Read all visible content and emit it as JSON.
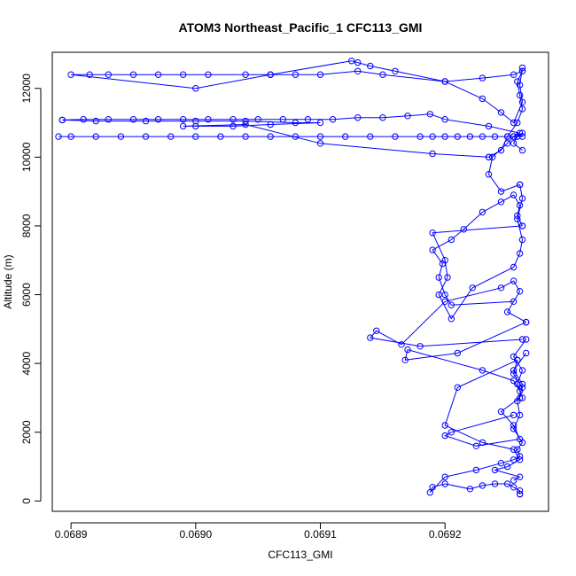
{
  "chart_data": {
    "type": "line",
    "title": "ATOM3 Northeast_Pacific_1 CFC113_GMI",
    "xlabel": "CFC113_GMI",
    "ylabel": "Altitude (m)",
    "xlim": [
      0.068885,
      0.069283
    ],
    "ylim": [
      -300,
      13050
    ],
    "xticks": [
      0.0689,
      0.069,
      0.0691,
      0.0692
    ],
    "xtick_labels": [
      "0.0689",
      "0.0690",
      "0.0691",
      "0.0692"
    ],
    "yticks": [
      0,
      2000,
      4000,
      6000,
      8000,
      10000,
      12000
    ],
    "ytick_labels": [
      "0",
      "2000",
      "4000",
      "6000",
      "8000",
      "10000",
      "12000"
    ],
    "markers": "open-circle",
    "grid": false,
    "legend": "none",
    "color": "#0000ff",
    "series": [
      {
        "x": [
          0.06926,
          0.06926,
          0.06926,
          0.069255,
          0.06925,
          0.06924,
          0.06923,
          0.06922,
          0.0692,
          0.06919,
          0.069188,
          0.0692,
          0.069225,
          0.069245,
          0.069255,
          0.06926,
          0.069258,
          0.069262,
          0.069255,
          0.06926,
          0.069258,
          0.069262,
          0.069255,
          0.069258
        ],
        "y": [
          200,
          200,
          300,
          400,
          500,
          500,
          450,
          350,
          500,
          400,
          250,
          700,
          900,
          1100,
          1200,
          1300,
          1500,
          1700,
          2100,
          2500,
          2900,
          3300,
          3700,
          4100
        ]
      },
      {
        "x": [
          0.069258,
          0.06921,
          0.0692,
          0.06923,
          0.069255,
          0.06926,
          0.06925,
          0.06924,
          0.06926,
          0.069255
        ],
        "y": [
          4100,
          3300,
          2200,
          1700,
          1500,
          1200,
          1000,
          900,
          700,
          600
        ]
      },
      {
        "x": [
          0.069255,
          0.069205,
          0.0692,
          0.069225,
          0.06926,
          0.069255,
          0.069245,
          0.06926,
          0.069262,
          0.069255,
          0.069265
        ],
        "y": [
          2500,
          2000,
          1900,
          1600,
          1800,
          2200,
          2600,
          3000,
          3400,
          3800,
          4300
        ]
      },
      {
        "x": [
          0.069262,
          0.06918,
          0.06914,
          0.069145,
          0.069165,
          0.0692,
          0.069245,
          0.069255,
          0.06926,
          0.06925,
          0.069265
        ],
        "y": [
          4700,
          4500,
          4750,
          4950,
          4550,
          5800,
          6200,
          6400,
          6100,
          5500,
          5200
        ]
      },
      {
        "x": [
          0.069265,
          0.06921,
          0.069168,
          0.06917,
          0.06923,
          0.069255,
          0.06926,
          0.069262,
          0.069258,
          0.069262,
          0.069255,
          0.069265
        ],
        "y": [
          5200,
          4300,
          4100,
          4400,
          3800,
          3500,
          3200,
          3000,
          3400,
          3800,
          4200,
          4700
        ]
      },
      {
        "x": [
          0.069255,
          0.069205,
          0.0692,
          0.069195,
          0.069198,
          0.06919,
          0.069205,
          0.069215,
          0.06923,
          0.069245,
          0.069255,
          0.06926,
          0.069258,
          0.069262
        ],
        "y": [
          5800,
          5700,
          6000,
          6500,
          6900,
          7300,
          7600,
          7900,
          8400,
          8700,
          8900,
          8600,
          8300,
          8000
        ]
      },
      {
        "x": [
          0.069262,
          0.06919,
          0.0692,
          0.069202,
          0.069195,
          0.069205,
          0.069222,
          0.069255,
          0.06926,
          0.069262,
          0.069258,
          0.069262,
          0.06926
        ],
        "y": [
          8000,
          7800,
          7000,
          6500,
          6000,
          5300,
          6200,
          6800,
          7200,
          7600,
          8200,
          8800,
          9200
        ]
      },
      {
        "x": [
          0.06926,
          0.069245,
          0.069235,
          0.069238,
          0.06925,
          0.069255,
          0.069262,
          0.069258,
          0.069255,
          0.069262
        ],
        "y": [
          9200,
          9000,
          9500,
          10000,
          10400,
          10600,
          10700,
          10600,
          10400,
          10200
        ]
      },
      {
        "x": [
          0.069262,
          0.069255,
          0.06925,
          0.06924,
          0.06923,
          0.06922,
          0.06921,
          0.0692,
          0.06919,
          0.06918,
          0.06916,
          0.06914,
          0.06912,
          0.0691,
          0.06908,
          0.06906,
          0.06904,
          0.06902,
          0.069,
          0.06898,
          0.06896,
          0.06894,
          0.06892,
          0.0689,
          0.06889
        ],
        "y": [
          10600,
          10600,
          10600,
          10600,
          10600,
          10600,
          10600,
          10600,
          10600,
          10600,
          10600,
          10600,
          10600,
          10600,
          10600,
          10600,
          10600,
          10600,
          10600,
          10600,
          10600,
          10600,
          10600,
          10600,
          10600
        ]
      },
      {
        "x": [
          0.06926,
          0.069235,
          0.0692,
          0.069188,
          0.06917,
          0.06915,
          0.06913,
          0.06911,
          0.06909,
          0.06907,
          0.06905,
          0.06903,
          0.06901,
          0.06899,
          0.06897,
          0.06895,
          0.06893,
          0.06891,
          0.068893
        ],
        "y": [
          10700,
          10900,
          11100,
          11250,
          11200,
          11150,
          11150,
          11100,
          11100,
          11100,
          11100,
          11100,
          11100,
          11100,
          11100,
          11100,
          11100,
          11100,
          11080
        ]
      },
      {
        "x": [
          0.068893,
          0.06892,
          0.06896,
          0.069,
          0.06904,
          0.06908,
          0.0691,
          0.06906,
          0.06903,
          0.069,
          0.06899,
          0.06904,
          0.0691,
          0.06919,
          0.069235
        ],
        "y": [
          11080,
          11050,
          11050,
          11050,
          11050,
          11000,
          11000,
          10950,
          10900,
          10900,
          10900,
          10950,
          10400,
          10100,
          10000
        ]
      },
      {
        "x": [
          0.069235,
          0.069245,
          0.06925,
          0.069258,
          0.069262,
          0.06926,
          0.069258,
          0.069262
        ],
        "y": [
          10000,
          10200,
          10600,
          11000,
          11400,
          11800,
          12200,
          12500
        ]
      },
      {
        "x": [
          0.069262,
          0.069255,
          0.06923,
          0.0692,
          0.06915,
          0.06913,
          0.0691,
          0.06908,
          0.06906,
          0.06904,
          0.06901,
          0.06899,
          0.06897,
          0.06895,
          0.06893,
          0.068915,
          0.0689,
          0.069,
          0.06906
        ],
        "y": [
          12500,
          12400,
          12300,
          12200,
          12400,
          12500,
          12400,
          12400,
          12400,
          12400,
          12400,
          12400,
          12400,
          12400,
          12400,
          12400,
          12400,
          12000,
          12400
        ]
      },
      {
        "x": [
          0.06906,
          0.069125,
          0.06913,
          0.06914,
          0.06916,
          0.0692,
          0.06923,
          0.069245,
          0.069255,
          0.069262,
          0.06926,
          0.069262
        ],
        "y": [
          12400,
          12800,
          12750,
          12650,
          12500,
          12200,
          11700,
          11300,
          11000,
          11600,
          12100,
          12600
        ]
      }
    ]
  }
}
